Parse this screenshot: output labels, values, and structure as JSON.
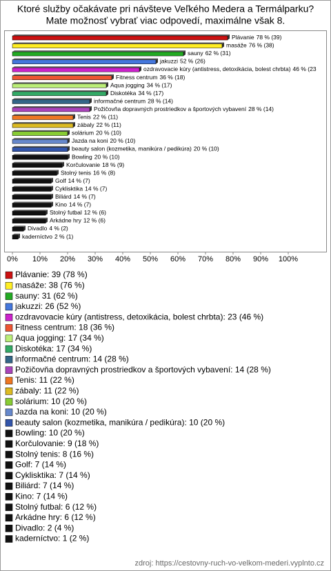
{
  "chart_data": {
    "type": "bar",
    "orientation": "horizontal",
    "title": "Ktoré služby očakávate pri návšteve Veľkého Medera a Termálparku?",
    "subtitle": "Mate možnosť vybrať viac odpovedí, maximálne však 8.",
    "categories": [
      "Plávanie",
      "masáže",
      "sauny",
      "jakuzzi",
      "ozdravovacie kúry (antistress, detoxikácia, bolest chrbta)",
      "Fitness centrum",
      "Aqua jogging",
      "Diskotéka",
      "informačné centrum",
      "Požičovňa dopravných prostriedkov a športových vybavení",
      "Tenis",
      "zábaly",
      "solárium",
      "Jazda na koni",
      "beauty salon (kozmetika, manikúra / pedikúra)",
      "Bowling",
      "Korčulovanie",
      "Stolný tenis",
      "Golf",
      "Cyklisktika",
      "Biliárd",
      "Kino",
      "Stolný futbal",
      "Arkádne hry",
      "Divadlo",
      "kaderníctvo"
    ],
    "values": [
      78,
      76,
      62,
      52,
      46,
      36,
      34,
      34,
      28,
      28,
      22,
      22,
      20,
      20,
      20,
      20,
      18,
      16,
      14,
      14,
      14,
      14,
      12,
      12,
      4,
      2
    ],
    "value_labels": [
      "78 % (39)",
      "76 % (38)",
      "62 % (31)",
      "52 % (26)",
      "46 % (23",
      "36 % (18)",
      "34 % (17)",
      "34 % (17)",
      "28 % (14)",
      "28 % (14)",
      "22 % (11)",
      "22 % (11)",
      "20 % (10)",
      "20 % (10)",
      "20 % (10)",
      "20 % (10)",
      "18 % (9)",
      "16 % (8)",
      "14 % (7)",
      "14 % (7)",
      "14 % (7)",
      "14 % (7)",
      "12 % (6)",
      "12 % (6)",
      "4 % (2)",
      "2 % (1)"
    ],
    "legend_labels": [
      "Plávanie: 39 (78 %)",
      "masáže: 38 (76 %)",
      "sauny: 31 (62 %)",
      "jakuzzi: 26 (52 %)",
      "ozdravovacie kúry (antistress, detoxikácia, bolest chrbta): 23 (46 %)",
      "Fitness centrum: 18 (36 %)",
      "Aqua jogging: 17 (34 %)",
      "Diskotéka: 17 (34 %)",
      "informačné centrum: 14 (28 %)",
      "Požičovňa dopravných prostriedkov a športových vybavení: 14 (28 %)",
      "Tenis: 11 (22 %)",
      "zábaly: 11 (22 %)",
      "solárium: 10 (20 %)",
      "Jazda na koni: 10 (20 %)",
      "beauty salon (kozmetika, manikúra / pedikúra): 10 (20 %)",
      "Bowling: 10 (20 %)",
      "Korčulovanie: 9 (18 %)",
      "Stolný tenis: 8 (16 %)",
      "Golf: 7 (14 %)",
      "Cyklisktika: 7 (14 %)",
      "Biliárd: 7 (14 %)",
      "Kino: 7 (14 %)",
      "Stolný futbal: 6 (12 %)",
      "Arkádne hry: 6 (12 %)",
      "Divadlo: 2 (4 %)",
      "kaderníctvo: 1 (2 %)"
    ],
    "colors": [
      "#cc1111",
      "#ffee22",
      "#22aa22",
      "#4477dd",
      "#cc22cc",
      "#ee5533",
      "#bbee77",
      "#33aa66",
      "#336688",
      "#aa44bb",
      "#ee7722",
      "#ddbb22",
      "#88cc33",
      "#6688cc",
      "#3355aa",
      "#111111",
      "#111111",
      "#111111",
      "#111111",
      "#111111",
      "#111111",
      "#111111",
      "#111111",
      "#111111",
      "#111111",
      "#111111"
    ],
    "xlim": [
      0,
      100
    ],
    "xticks": [
      {
        "value": 0,
        "label": "0%"
      },
      {
        "value": 10,
        "label": "10%"
      },
      {
        "value": 20,
        "label": "20%"
      },
      {
        "value": 30,
        "label": "30%"
      },
      {
        "value": 40,
        "label": "40%"
      },
      {
        "value": 50,
        "label": "50%"
      },
      {
        "value": 60,
        "label": "60%"
      },
      {
        "value": 70,
        "label": "70%"
      },
      {
        "value": 80,
        "label": "80%"
      },
      {
        "value": 90,
        "label": "90%"
      },
      {
        "value": 100,
        "label": "100%"
      }
    ],
    "source": "zdroj: https://cestovny-ruch-vo-velkom-mederi.vyplnto.cz"
  }
}
